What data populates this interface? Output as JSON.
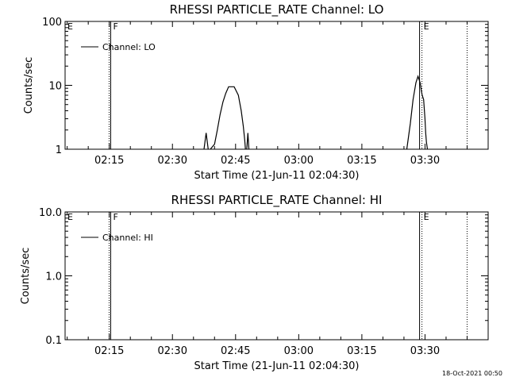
{
  "footer_timestamp": "18-Oct-2021 00:50",
  "chart_data": [
    {
      "type": "line",
      "title": "RHESSI PARTICLE_RATE Channel: LO",
      "xlabel": "Start Time (21-Jun-11 02:04:30)",
      "ylabel": "Counts/sec",
      "y_scale": "log",
      "ylim": [
        1,
        100
      ],
      "y_ticks": [
        "1",
        "10",
        "100"
      ],
      "x_unit": "time (hh:mm)",
      "xlim": [
        "02:04:30",
        "03:45:00"
      ],
      "x_ticks": [
        "02:15",
        "02:30",
        "02:45",
        "03:00",
        "03:15",
        "03:30"
      ],
      "legend_entry": "Channel: LO",
      "markers": [
        {
          "label": "E",
          "time": "02:04:30",
          "style": "none"
        },
        {
          "label": "F",
          "time": "02:15:20",
          "style": "dotted+solid"
        },
        {
          "label": "E",
          "time": "03:29:05",
          "style": "solid+dotted"
        },
        {
          "label": "",
          "time": "03:40:00",
          "style": "dotted"
        }
      ],
      "series": [
        {
          "name": "Channel: LO",
          "segments": [
            [
              [
                "02:37:30",
                1.0
              ],
              [
                "02:38:00",
                1.8
              ],
              [
                "02:38:30",
                1.0
              ]
            ],
            [
              [
                "02:39:00",
                1.0
              ],
              [
                "02:40:00",
                1.2
              ],
              [
                "02:40:40",
                2.0
              ],
              [
                "02:41:20",
                3.5
              ],
              [
                "02:42:00",
                5.5
              ],
              [
                "02:42:40",
                7.5
              ],
              [
                "02:43:20",
                9.5
              ],
              [
                "02:44:40",
                9.5
              ],
              [
                "02:45:40",
                7.0
              ],
              [
                "02:46:20",
                4.0
              ],
              [
                "02:46:50",
                2.3
              ],
              [
                "02:47:10",
                1.4
              ],
              [
                "02:47:20",
                1.0
              ]
            ],
            [
              [
                "02:47:40",
                1.0
              ],
              [
                "02:47:55",
                1.8
              ],
              [
                "02:48:10",
                1.0
              ]
            ],
            [
              [
                "03:25:40",
                1.0
              ],
              [
                "03:26:30",
                2.5
              ],
              [
                "03:27:10",
                6.0
              ],
              [
                "03:27:50",
                11.0
              ],
              [
                "03:28:20",
                13.8
              ],
              [
                "03:28:50",
                11.0
              ],
              [
                "03:29:10",
                8.0
              ],
              [
                "03:29:20",
                7.0
              ],
              [
                "03:29:40",
                6.0
              ],
              [
                "03:30:00",
                3.0
              ],
              [
                "03:30:10",
                1.8
              ],
              [
                "03:30:20",
                1.3
              ],
              [
                "03:30:35",
                1.0
              ]
            ]
          ]
        }
      ]
    },
    {
      "type": "line",
      "title": "RHESSI PARTICLE_RATE Channel: HI",
      "xlabel": "Start Time (21-Jun-11 02:04:30)",
      "ylabel": "Counts/sec",
      "y_scale": "log",
      "ylim": [
        0.1,
        10
      ],
      "y_ticks": [
        "0.1",
        "1.0",
        "10.0"
      ],
      "x_unit": "time (hh:mm)",
      "xlim": [
        "02:04:30",
        "03:45:00"
      ],
      "x_ticks": [
        "02:15",
        "02:30",
        "02:45",
        "03:00",
        "03:15",
        "03:30"
      ],
      "legend_entry": "Channel: HI",
      "markers": [
        {
          "label": "E",
          "time": "02:04:30",
          "style": "none"
        },
        {
          "label": "F",
          "time": "02:15:20",
          "style": "dotted+solid"
        },
        {
          "label": "E",
          "time": "03:29:05",
          "style": "solid+dotted"
        },
        {
          "label": "",
          "time": "03:40:00",
          "style": "dotted"
        }
      ],
      "series": [
        {
          "name": "Channel: HI",
          "segments": []
        }
      ]
    }
  ]
}
